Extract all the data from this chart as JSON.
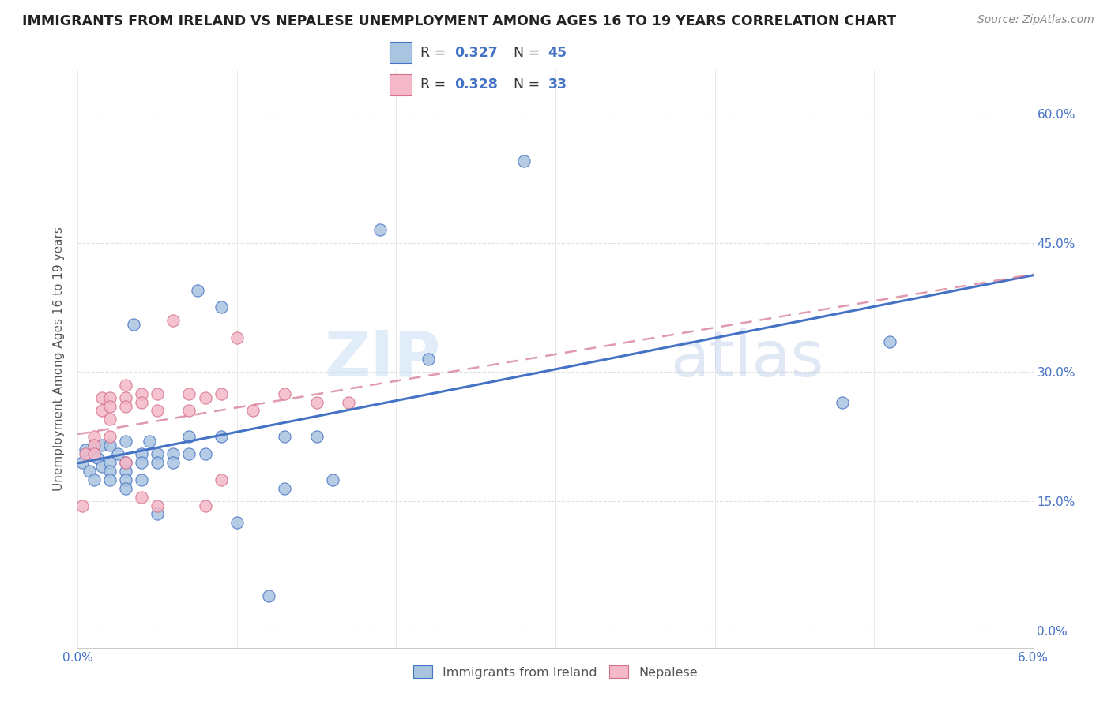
{
  "title": "IMMIGRANTS FROM IRELAND VS NEPALESE UNEMPLOYMENT AMONG AGES 16 TO 19 YEARS CORRELATION CHART",
  "source": "Source: ZipAtlas.com",
  "ylabel": "Unemployment Among Ages 16 to 19 years",
  "xlim": [
    0.0,
    0.06
  ],
  "ylim": [
    -0.02,
    0.65
  ],
  "ytick_positions": [
    0.0,
    0.15,
    0.3,
    0.45,
    0.6
  ],
  "ytick_labels_right": [
    "0.0%",
    "15.0%",
    "30.0%",
    "45.0%",
    "60.0%"
  ],
  "xtick_positions": [
    0.0,
    0.01,
    0.02,
    0.03,
    0.04,
    0.05,
    0.06
  ],
  "xtick_labels": [
    "0.0%",
    "",
    "",
    "",
    "",
    "",
    "6.0%"
  ],
  "color_ireland": "#a8c4e0",
  "color_ireland_edge": "#4472c4",
  "color_nepal": "#f4b8c8",
  "color_nepal_edge": "#d4708a",
  "color_line_ireland": "#4472c4",
  "color_line_nepal": "#d4708a",
  "ireland_x": [
    0.0003,
    0.0005,
    0.0007,
    0.001,
    0.001,
    0.0012,
    0.0015,
    0.0015,
    0.002,
    0.002,
    0.002,
    0.002,
    0.0025,
    0.003,
    0.003,
    0.003,
    0.003,
    0.003,
    0.0035,
    0.004,
    0.004,
    0.004,
    0.0045,
    0.005,
    0.005,
    0.005,
    0.006,
    0.006,
    0.007,
    0.007,
    0.0075,
    0.008,
    0.009,
    0.009,
    0.01,
    0.012,
    0.013,
    0.013,
    0.015,
    0.016,
    0.019,
    0.022,
    0.028,
    0.048,
    0.051
  ],
  "ireland_y": [
    0.195,
    0.21,
    0.185,
    0.215,
    0.175,
    0.2,
    0.215,
    0.19,
    0.215,
    0.195,
    0.185,
    0.175,
    0.205,
    0.22,
    0.195,
    0.185,
    0.175,
    0.165,
    0.355,
    0.205,
    0.195,
    0.175,
    0.22,
    0.205,
    0.195,
    0.135,
    0.205,
    0.195,
    0.225,
    0.205,
    0.395,
    0.205,
    0.375,
    0.225,
    0.125,
    0.04,
    0.225,
    0.165,
    0.225,
    0.175,
    0.465,
    0.315,
    0.545,
    0.265,
    0.335
  ],
  "nepal_x": [
    0.0003,
    0.0005,
    0.001,
    0.001,
    0.001,
    0.0015,
    0.0015,
    0.002,
    0.002,
    0.002,
    0.002,
    0.003,
    0.003,
    0.003,
    0.003,
    0.004,
    0.004,
    0.004,
    0.005,
    0.005,
    0.005,
    0.006,
    0.007,
    0.007,
    0.008,
    0.008,
    0.009,
    0.009,
    0.01,
    0.011,
    0.013,
    0.015,
    0.017
  ],
  "nepal_y": [
    0.145,
    0.205,
    0.225,
    0.215,
    0.205,
    0.27,
    0.255,
    0.27,
    0.26,
    0.245,
    0.225,
    0.285,
    0.27,
    0.26,
    0.195,
    0.275,
    0.265,
    0.155,
    0.275,
    0.255,
    0.145,
    0.36,
    0.275,
    0.255,
    0.27,
    0.145,
    0.275,
    0.175,
    0.34,
    0.255,
    0.275,
    0.265,
    0.265
  ],
  "watermark_zip": "ZIP",
  "watermark_atlas": "atlas",
  "background_color": "#ffffff",
  "grid_color": "#e0e0e0"
}
